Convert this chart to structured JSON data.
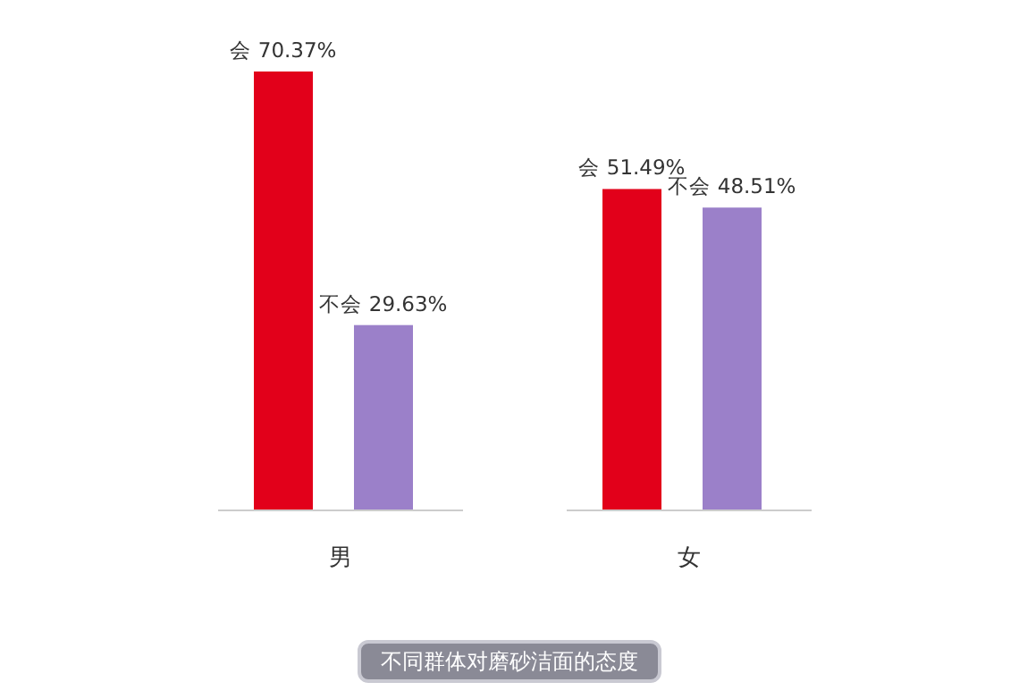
{
  "chart_data": {
    "type": "bar",
    "title": "不同群体对磨砂洁面的态度",
    "categories": [
      "男",
      "女"
    ],
    "series": [
      {
        "color": "#e2001a",
        "values": [
          70.37,
          51.49
        ],
        "value_labels": [
          "会 70.37%",
          "会 51.49%"
        ]
      },
      {
        "color": "#9b80c9",
        "values": [
          29.63,
          48.51
        ],
        "value_labels": [
          "不会 29.63%",
          "不会 48.51%"
        ]
      }
    ]
  }
}
